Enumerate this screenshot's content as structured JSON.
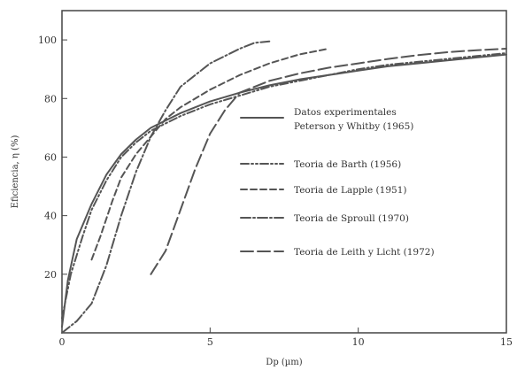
{
  "chart_data": {
    "type": "line",
    "xlabel": "Dp (µm)",
    "ylabel": "Eficiencia, η (%)",
    "xlim": [
      0,
      15
    ],
    "ylim": [
      0,
      110
    ],
    "x_ticks": [
      "0",
      "5",
      "10",
      "15"
    ],
    "y_ticks": [
      "20",
      "40",
      "60",
      "80",
      "100"
    ],
    "grid": false,
    "legend_placement": "right",
    "series": [
      {
        "name": "Datos experimentales Peterson y Whitby (1965)",
        "dash": "",
        "points": [
          [
            0,
            2
          ],
          [
            0.2,
            18
          ],
          [
            0.5,
            32
          ],
          [
            1,
            44
          ],
          [
            1.5,
            54
          ],
          [
            2,
            61
          ],
          [
            2.5,
            66
          ],
          [
            3,
            70
          ],
          [
            4,
            75
          ],
          [
            5,
            79
          ],
          [
            6,
            82
          ],
          [
            7,
            84.5
          ],
          [
            8,
            86.5
          ],
          [
            9,
            88
          ],
          [
            10,
            89.5
          ],
          [
            11,
            91
          ],
          [
            12,
            92
          ],
          [
            13,
            93
          ],
          [
            14,
            94
          ],
          [
            15,
            95
          ]
        ]
      },
      {
        "name": "Teoria de Barth (1956)",
        "dash": "9 3 2 3 2 3",
        "points": [
          [
            0,
            5
          ],
          [
            0.3,
            20
          ],
          [
            0.7,
            33
          ],
          [
            1,
            42
          ],
          [
            1.5,
            52
          ],
          [
            2,
            60
          ],
          [
            2.5,
            65
          ],
          [
            3,
            69
          ],
          [
            4,
            74
          ],
          [
            5,
            78
          ],
          [
            6,
            81
          ],
          [
            7,
            84
          ],
          [
            8,
            86
          ],
          [
            9,
            88
          ],
          [
            10,
            90
          ],
          [
            11,
            91.5
          ],
          [
            12,
            92.5
          ],
          [
            13,
            93.5
          ],
          [
            14,
            94.5
          ],
          [
            15,
            95.5
          ]
        ]
      },
      {
        "name": "Teoria de Lapple (1951)",
        "dash": "7 4",
        "points": [
          [
            1,
            25
          ],
          [
            1.3,
            33
          ],
          [
            1.7,
            45
          ],
          [
            2,
            53
          ],
          [
            2.5,
            61
          ],
          [
            3,
            67
          ],
          [
            3.5,
            73
          ],
          [
            4,
            77
          ],
          [
            5,
            83
          ],
          [
            6,
            88
          ],
          [
            7,
            92
          ],
          [
            8,
            95
          ],
          [
            9,
            97
          ]
        ]
      },
      {
        "name": "Teoria de Sproull (1970)",
        "dash": "11 3 2 3",
        "points": [
          [
            0,
            0
          ],
          [
            0.5,
            4
          ],
          [
            1,
            10
          ],
          [
            1.5,
            23
          ],
          [
            2,
            40
          ],
          [
            2.5,
            55
          ],
          [
            3,
            67
          ],
          [
            3.5,
            76
          ],
          [
            4,
            84
          ],
          [
            5,
            92
          ],
          [
            6,
            97
          ],
          [
            6.5,
            99
          ],
          [
            7,
            99.5
          ]
        ]
      },
      {
        "name": "Teoria de Leith y Licht (1972)",
        "dash": "14 5",
        "points": [
          [
            3,
            20
          ],
          [
            3.5,
            28
          ],
          [
            4,
            42
          ],
          [
            4.5,
            56
          ],
          [
            5,
            68
          ],
          [
            5.5,
            76
          ],
          [
            6,
            82
          ],
          [
            7,
            86
          ],
          [
            8,
            88.5
          ],
          [
            9,
            90.5
          ],
          [
            10,
            92
          ],
          [
            11,
            93.5
          ],
          [
            12,
            94.8
          ],
          [
            13,
            95.8
          ],
          [
            14,
            96.5
          ],
          [
            15,
            97
          ]
        ]
      }
    ]
  }
}
